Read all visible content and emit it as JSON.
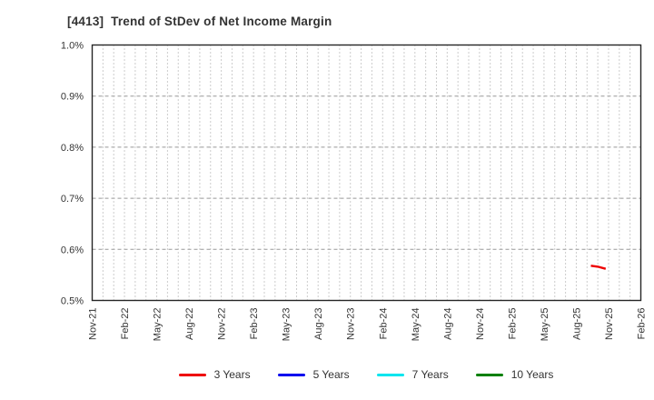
{
  "window": {
    "title": "[4413]  Trend of StDev of Net Income Margin"
  },
  "chart_data": {
    "type": "line",
    "title": "[4413]  Trend of StDev of Net Income Margin",
    "xlabel": "",
    "ylabel": "",
    "ylim": [
      0.5,
      1.0
    ],
    "y_unit": "%",
    "grid": true,
    "legend_position": "bottom",
    "x_tick_labels": [
      "Nov-21",
      "Feb-22",
      "May-22",
      "Aug-22",
      "Nov-22",
      "Feb-23",
      "May-23",
      "Aug-23",
      "Nov-23",
      "Feb-24",
      "May-24",
      "Aug-24",
      "Nov-24",
      "Feb-25",
      "May-25",
      "Aug-25",
      "Nov-25",
      "Feb-26"
    ],
    "minor_vertical_gridlines_per_tick_interval": 3,
    "y_ticks": [
      {
        "label": "1.0%",
        "value": 1.0
      },
      {
        "label": "0.9%",
        "value": 0.9
      },
      {
        "label": "0.8%",
        "value": 0.8
      },
      {
        "label": "0.7%",
        "value": 0.7
      },
      {
        "label": "0.6%",
        "value": 0.6
      },
      {
        "label": "0.5%",
        "value": 0.5
      }
    ],
    "series": [
      {
        "name": "3 Years",
        "color": "#ee0000",
        "period_approx": [
          "Sep-25",
          "Oct-25"
        ],
        "points": [
          {
            "date": "Sep-25",
            "x_frac": 0.909,
            "value": 0.568
          },
          {
            "date": "Oct-25",
            "x_frac": 0.922,
            "value": 0.566
          },
          {
            "date": "Oct-25",
            "x_frac": 0.936,
            "value": 0.562
          }
        ]
      },
      {
        "name": "5 Years",
        "color": "#0000ee",
        "points": []
      },
      {
        "name": "7 Years",
        "color": "#00e5ee",
        "points": []
      },
      {
        "name": "10 Years",
        "color": "#008000",
        "points": []
      }
    ],
    "style": {
      "border_color": "#262626",
      "grid_color": "#999999",
      "text_color": "#333333",
      "background": "#ffffff"
    }
  }
}
